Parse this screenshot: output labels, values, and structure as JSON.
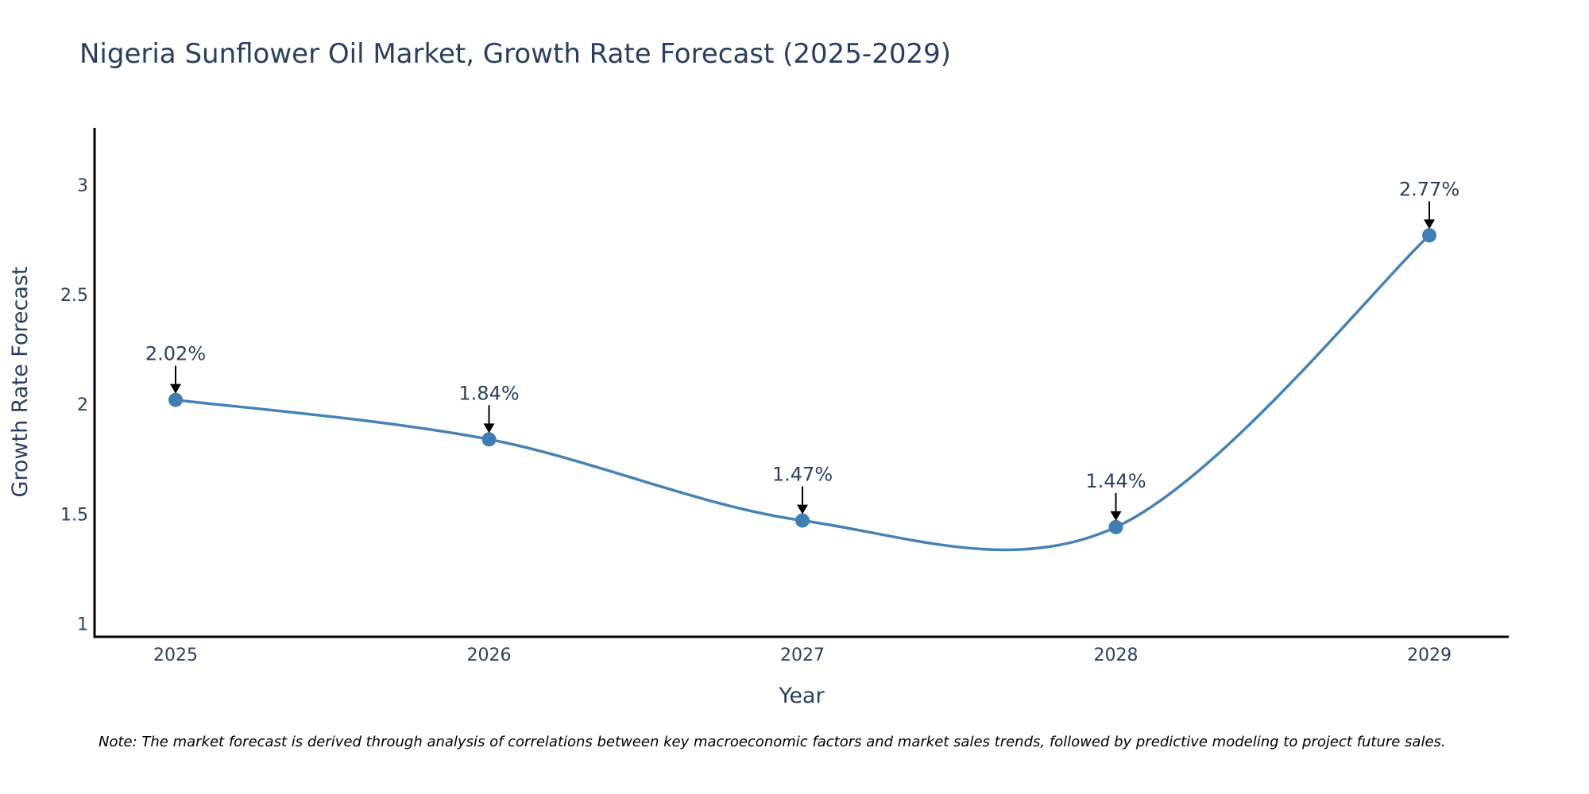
{
  "chart_data": {
    "type": "line",
    "title": "Nigeria Sunflower Oil Market, Growth Rate Forecast (2025-2029)",
    "xlabel": "Year",
    "ylabel": "Growth Rate Forecast",
    "categories": [
      "2025",
      "2026",
      "2027",
      "2028",
      "2029"
    ],
    "series": [
      {
        "name": "Growth Rate Forecast",
        "values": [
          2.02,
          1.84,
          1.47,
          1.44,
          2.77
        ]
      }
    ],
    "data_labels": [
      "2.02%",
      "1.84%",
      "1.47%",
      "1.44%",
      "2.77%"
    ],
    "yticks": [
      "1",
      "1.5",
      "2",
      "2.5",
      "3"
    ],
    "ylim": [
      0.94,
      3.26
    ],
    "line_shape": "spline",
    "grid": false,
    "legend": "none",
    "colors": {
      "line": "#4682b4",
      "marker": "#3f7fb5",
      "text": "#2a3f5f",
      "axis": "#000000",
      "arrow": "#000000"
    }
  },
  "note": "Note: The market forecast is derived through analysis of correlations between key macroeconomic factors and market sales trends, followed by predictive modeling to project future sales."
}
